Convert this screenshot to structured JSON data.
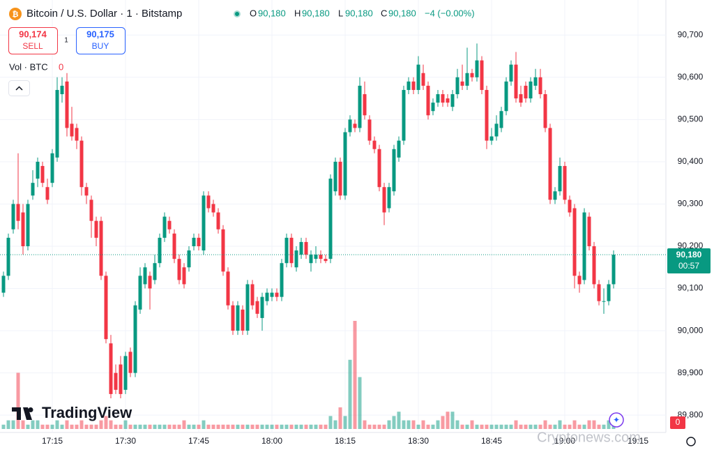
{
  "chart_data": {
    "type": "candlestick",
    "header": {
      "title": "Bitcoin / U.S. Dollar · 1 · Bitstamp",
      "o_label": "O",
      "o": "90,180",
      "h_label": "H",
      "h": "90,180",
      "l_label": "L",
      "l": "90,180",
      "c_label": "C",
      "c": "90,180",
      "change": "−4 (−0.00%)"
    },
    "sell": {
      "price": "90,174",
      "label": "SELL"
    },
    "spread": "1",
    "buy": {
      "price": "90,175",
      "label": "BUY"
    },
    "volume_label": "Vol · BTC",
    "volume_value": "0",
    "logo": "TradingView",
    "watermark": "Cryptonews.com",
    "countdown": "00:57",
    "corner_badge": "0",
    "up_color": "#089981",
    "down_color": "#f23645",
    "ylim": [
      89759,
      90783
    ],
    "yticks": [
      {
        "value": 89800,
        "label": "89,800"
      },
      {
        "value": 89900,
        "label": "89,900"
      },
      {
        "value": 90000,
        "label": "90,000"
      },
      {
        "value": 90100,
        "label": "90,100"
      },
      {
        "value": 90200,
        "label": "90,200"
      },
      {
        "value": 90300,
        "label": "90,300"
      },
      {
        "value": 90400,
        "label": "90,400"
      },
      {
        "value": 90500,
        "label": "90,500"
      },
      {
        "value": 90600,
        "label": "90,600"
      },
      {
        "value": 90700,
        "label": "90,700"
      }
    ],
    "grid": true,
    "last_price": {
      "value": 90180,
      "label": "90,180"
    },
    "categories": [
      null,
      null,
      null,
      null,
      null,
      null,
      null,
      null,
      null,
      null,
      "17:15",
      null,
      null,
      null,
      null,
      null,
      null,
      null,
      null,
      null,
      null,
      null,
      null,
      null,
      null,
      "17:30",
      null,
      null,
      null,
      null,
      null,
      null,
      null,
      null,
      null,
      null,
      null,
      null,
      null,
      null,
      "17:45",
      null,
      null,
      null,
      null,
      null,
      null,
      null,
      null,
      null,
      null,
      null,
      null,
      null,
      null,
      "18:00",
      null,
      null,
      null,
      null,
      null,
      null,
      null,
      null,
      null,
      null,
      null,
      null,
      null,
      null,
      "18:15",
      null,
      null,
      null,
      null,
      null,
      null,
      null,
      null,
      null,
      null,
      null,
      null,
      null,
      null,
      "18:30",
      null,
      null,
      null,
      null,
      null,
      null,
      null,
      null,
      null,
      null,
      null,
      null,
      null,
      null,
      "18:45",
      null,
      null,
      null,
      null,
      null,
      null,
      null,
      null,
      null,
      null,
      null,
      null,
      null,
      null,
      "19:00",
      null,
      null,
      null,
      null,
      null,
      null,
      null,
      null,
      null,
      null,
      null,
      null,
      null,
      null,
      "19:15",
      null,
      null,
      null,
      null,
      null
    ],
    "candles": [
      [
        90090,
        90140,
        90080,
        90130
      ],
      [
        90130,
        90230,
        90120,
        90220
      ],
      [
        90240,
        90310,
        90230,
        90300
      ],
      [
        90300,
        90420,
        90240,
        90260
      ],
      [
        90280,
        90300,
        90180,
        90200
      ],
      [
        90200,
        90310,
        90190,
        90300
      ],
      [
        90320,
        90380,
        90310,
        90350
      ],
      [
        90360,
        90410,
        90340,
        90400
      ],
      [
        90390,
        90400,
        90340,
        90350
      ],
      [
        90340,
        90360,
        90300,
        90310
      ],
      [
        90350,
        90430,
        90340,
        90420
      ],
      [
        90410,
        90600,
        90400,
        90570
      ],
      [
        90560,
        90600,
        90540,
        90580
      ],
      [
        90590,
        90610,
        90460,
        90480
      ],
      [
        90490,
        90530,
        90450,
        90460
      ],
      [
        90480,
        90490,
        90430,
        90450
      ],
      [
        90450,
        90460,
        90320,
        90340
      ],
      [
        90340,
        90350,
        90300,
        90320
      ],
      [
        90310,
        90320,
        90220,
        90260
      ],
      [
        90260,
        90270,
        90200,
        90220
      ],
      [
        90260,
        90270,
        90120,
        90130
      ],
      [
        90130,
        90140,
        89970,
        89980
      ],
      [
        89970,
        89990,
        89840,
        89850
      ],
      [
        89900,
        89920,
        89850,
        89860
      ],
      [
        89920,
        89940,
        89840,
        89850
      ],
      [
        89860,
        89950,
        89850,
        89940
      ],
      [
        89950,
        89960,
        89890,
        89900
      ],
      [
        89900,
        90070,
        89890,
        90060
      ],
      [
        90050,
        90150,
        90040,
        90130
      ],
      [
        90110,
        90160,
        90100,
        90150
      ],
      [
        90130,
        90140,
        90050,
        90100
      ],
      [
        90120,
        90180,
        90110,
        90160
      ],
      [
        90160,
        90230,
        90150,
        90220
      ],
      [
        90220,
        90280,
        90210,
        90270
      ],
      [
        90260,
        90270,
        90230,
        90240
      ],
      [
        90230,
        90240,
        90160,
        90170
      ],
      [
        90170,
        90180,
        90110,
        90120
      ],
      [
        90150,
        90160,
        90100,
        90110
      ],
      [
        90150,
        90200,
        90140,
        90190
      ],
      [
        90200,
        90230,
        90190,
        90220
      ],
      [
        90220,
        90230,
        90190,
        90200
      ],
      [
        90190,
        90330,
        90180,
        90320
      ],
      [
        90320,
        90330,
        90280,
        90290
      ],
      [
        90300,
        90310,
        90270,
        90280
      ],
      [
        90280,
        90290,
        90230,
        90240
      ],
      [
        90240,
        90250,
        90130,
        90140
      ],
      [
        90140,
        90150,
        90050,
        90060
      ],
      [
        90060,
        90070,
        89990,
        90000
      ],
      [
        90000,
        90070,
        89990,
        90060
      ],
      [
        90050,
        90060,
        89990,
        90000
      ],
      [
        90000,
        90120,
        89990,
        90110
      ],
      [
        90110,
        90120,
        90050,
        90060
      ],
      [
        90070,
        90080,
        90030,
        90040
      ],
      [
        90030,
        90090,
        90000,
        90080
      ],
      [
        90070,
        90100,
        90060,
        90090
      ],
      [
        90080,
        90100,
        90070,
        90090
      ],
      [
        90090,
        90100,
        90070,
        90080
      ],
      [
        90080,
        90170,
        90070,
        90160
      ],
      [
        90160,
        90230,
        90150,
        90220
      ],
      [
        90220,
        90230,
        90150,
        90160
      ],
      [
        90150,
        90200,
        90140,
        90190
      ],
      [
        90180,
        90220,
        90170,
        90210
      ],
      [
        90210,
        90220,
        90170,
        90180
      ],
      [
        90160,
        90190,
        90140,
        90180
      ],
      [
        90170,
        90200,
        90160,
        90180
      ],
      [
        90180,
        90190,
        90160,
        90170
      ],
      [
        90170,
        90180,
        90160,
        90165
      ],
      [
        90170,
        90370,
        90160,
        90360
      ],
      [
        90330,
        90410,
        90320,
        90400
      ],
      [
        90400,
        90410,
        90310,
        90320
      ],
      [
        90320,
        90480,
        90310,
        90470
      ],
      [
        90470,
        90510,
        90460,
        90500
      ],
      [
        90490,
        90500,
        90470,
        90480
      ],
      [
        90480,
        90600,
        90470,
        90580
      ],
      [
        90560,
        90590,
        90500,
        90510
      ],
      [
        90500,
        90510,
        90440,
        90450
      ],
      [
        90450,
        90460,
        90420,
        90430
      ],
      [
        90430,
        90440,
        90330,
        90340
      ],
      [
        90340,
        90350,
        90250,
        90280
      ],
      [
        90290,
        90350,
        90280,
        90340
      ],
      [
        90330,
        90440,
        90320,
        90430
      ],
      [
        90410,
        90460,
        90400,
        90450
      ],
      [
        90450,
        90580,
        90440,
        90570
      ],
      [
        90570,
        90600,
        90560,
        90590
      ],
      [
        90590,
        90600,
        90560,
        90570
      ],
      [
        90570,
        90650,
        90560,
        90630
      ],
      [
        90610,
        90630,
        90570,
        90580
      ],
      [
        90580,
        90590,
        90500,
        90510
      ],
      [
        90520,
        90550,
        90510,
        90540
      ],
      [
        90540,
        90570,
        90530,
        90560
      ],
      [
        90560,
        90570,
        90530,
        90540
      ],
      [
        90550,
        90560,
        90530,
        90540
      ],
      [
        90530,
        90570,
        90520,
        90560
      ],
      [
        90560,
        90620,
        90550,
        90600
      ],
      [
        90590,
        90630,
        90570,
        90580
      ],
      [
        90580,
        90670,
        90570,
        90610
      ],
      [
        90610,
        90620,
        90590,
        90600
      ],
      [
        90600,
        90680,
        90590,
        90640
      ],
      [
        90640,
        90650,
        90560,
        90570
      ],
      [
        90570,
        90580,
        90430,
        90450
      ],
      [
        90450,
        90480,
        90440,
        90460
      ],
      [
        90460,
        90510,
        90450,
        90490
      ],
      [
        90480,
        90530,
        90470,
        90520
      ],
      [
        90520,
        90600,
        90510,
        90590
      ],
      [
        90590,
        90640,
        90580,
        90630
      ],
      [
        90630,
        90660,
        90540,
        90550
      ],
      [
        90560,
        90580,
        90530,
        90540
      ],
      [
        90580,
        90590,
        90540,
        90550
      ],
      [
        90550,
        90600,
        90540,
        90590
      ],
      [
        90580,
        90620,
        90570,
        90600
      ],
      [
        90600,
        90620,
        90550,
        90560
      ],
      [
        90560,
        90570,
        90470,
        90480
      ],
      [
        90480,
        90490,
        90300,
        90310
      ],
      [
        90310,
        90340,
        90300,
        90330
      ],
      [
        90330,
        90410,
        90320,
        90390
      ],
      [
        90390,
        90400,
        90300,
        90310
      ],
      [
        90310,
        90320,
        90270,
        90280
      ],
      [
        90290,
        90300,
        90100,
        90130
      ],
      [
        90130,
        90140,
        90090,
        90110
      ],
      [
        90120,
        90290,
        90110,
        90280
      ],
      [
        90270,
        90280,
        90190,
        90200
      ],
      [
        90200,
        90210,
        90100,
        90110
      ],
      [
        90110,
        90120,
        90060,
        90070
      ],
      [
        90070,
        90100,
        90040,
        90070
      ],
      [
        90070,
        90120,
        90060,
        90110
      ],
      [
        90110,
        90190,
        90100,
        90180
      ],
      null,
      null,
      null,
      null,
      null,
      null,
      null,
      null,
      null,
      null
    ],
    "volume_ylim": [
      0,
      40
    ],
    "volume": [
      1,
      2,
      2,
      13,
      2,
      1,
      2,
      2,
      1,
      1,
      1,
      2,
      1,
      2,
      1,
      1,
      2,
      1,
      1,
      1,
      2,
      3,
      2,
      1,
      1,
      2,
      1,
      1,
      1,
      1,
      1,
      1,
      1,
      1,
      1,
      1,
      1,
      2,
      1,
      1,
      1,
      2,
      1,
      1,
      1,
      1,
      1,
      1,
      1,
      1,
      1,
      1,
      1,
      1,
      1,
      1,
      1,
      1,
      1,
      1,
      1,
      1,
      1,
      1,
      1,
      1,
      1,
      3,
      2,
      5,
      3,
      16,
      25,
      12,
      2,
      1,
      1,
      1,
      1,
      2,
      3,
      4,
      2,
      2,
      2,
      1,
      2,
      1,
      1,
      2,
      3,
      4,
      4,
      2,
      1,
      1,
      2,
      1,
      1,
      1,
      1,
      1,
      1,
      1,
      1,
      2,
      1,
      1,
      1,
      1,
      1,
      2,
      1,
      1,
      2,
      1,
      1,
      2,
      1,
      1,
      2,
      2,
      1,
      1,
      2,
      1,
      null,
      null,
      null,
      null,
      null,
      null,
      null,
      null,
      null,
      null
    ]
  }
}
